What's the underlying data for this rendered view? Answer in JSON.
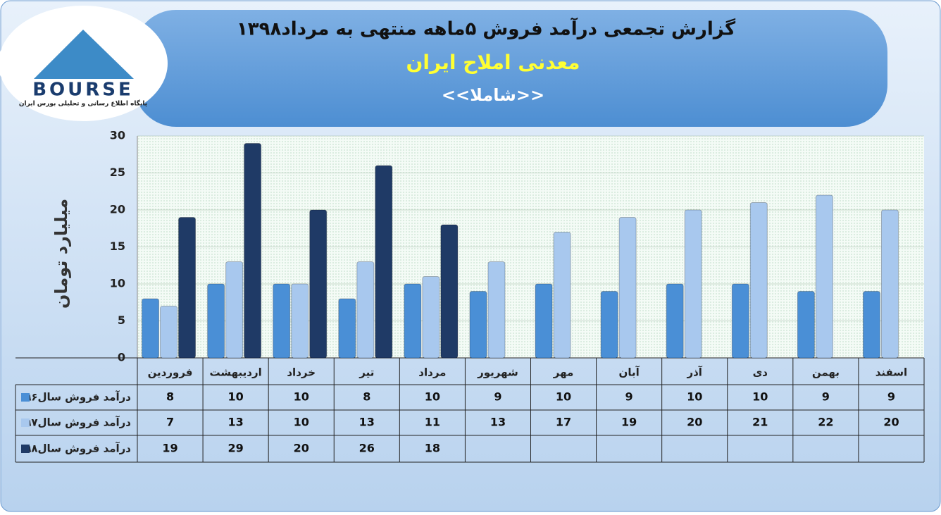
{
  "logo": {
    "text": "BOURSE",
    "subtitle": "پایگاه اطلاع رسانی و تحلیلی بورس ایران"
  },
  "chart_data": {
    "type": "bar",
    "title": "گزارش تجمعی درآمد فروش ۵ماهه منتهی به مرداد۱۳۹۸",
    "subtitle": "معدنی املاح ایران",
    "symbol": "<<شاملا>>",
    "y_label": "میلیارد تومان",
    "categories": [
      "فروردین",
      "اردیبهشت",
      "خرداد",
      "تیر",
      "مرداد",
      "شهریور",
      "مهر",
      "آبان",
      "آذر",
      "دی",
      "بهمن",
      "اسفند"
    ],
    "series": [
      {
        "name": "درآمد فروش سال۹۶",
        "color": "#4a8fd6",
        "values": [
          8,
          10,
          10,
          8,
          10,
          9,
          10,
          9,
          10,
          10,
          9,
          9
        ]
      },
      {
        "name": "درآمد فروش سال۹۷",
        "color": "#a8c8ee",
        "values": [
          7,
          13,
          10,
          13,
          11,
          13,
          17,
          19,
          20,
          21,
          22,
          20
        ]
      },
      {
        "name": "درآمد فروش سال۹۸",
        "color": "#1f3a66",
        "values": [
          19,
          29,
          20,
          26,
          18,
          null,
          null,
          null,
          null,
          null,
          null,
          null
        ]
      }
    ],
    "ylim": [
      0,
      30
    ],
    "yticks": [
      0,
      5,
      10,
      15,
      20,
      25,
      30
    ],
    "grid": true
  }
}
